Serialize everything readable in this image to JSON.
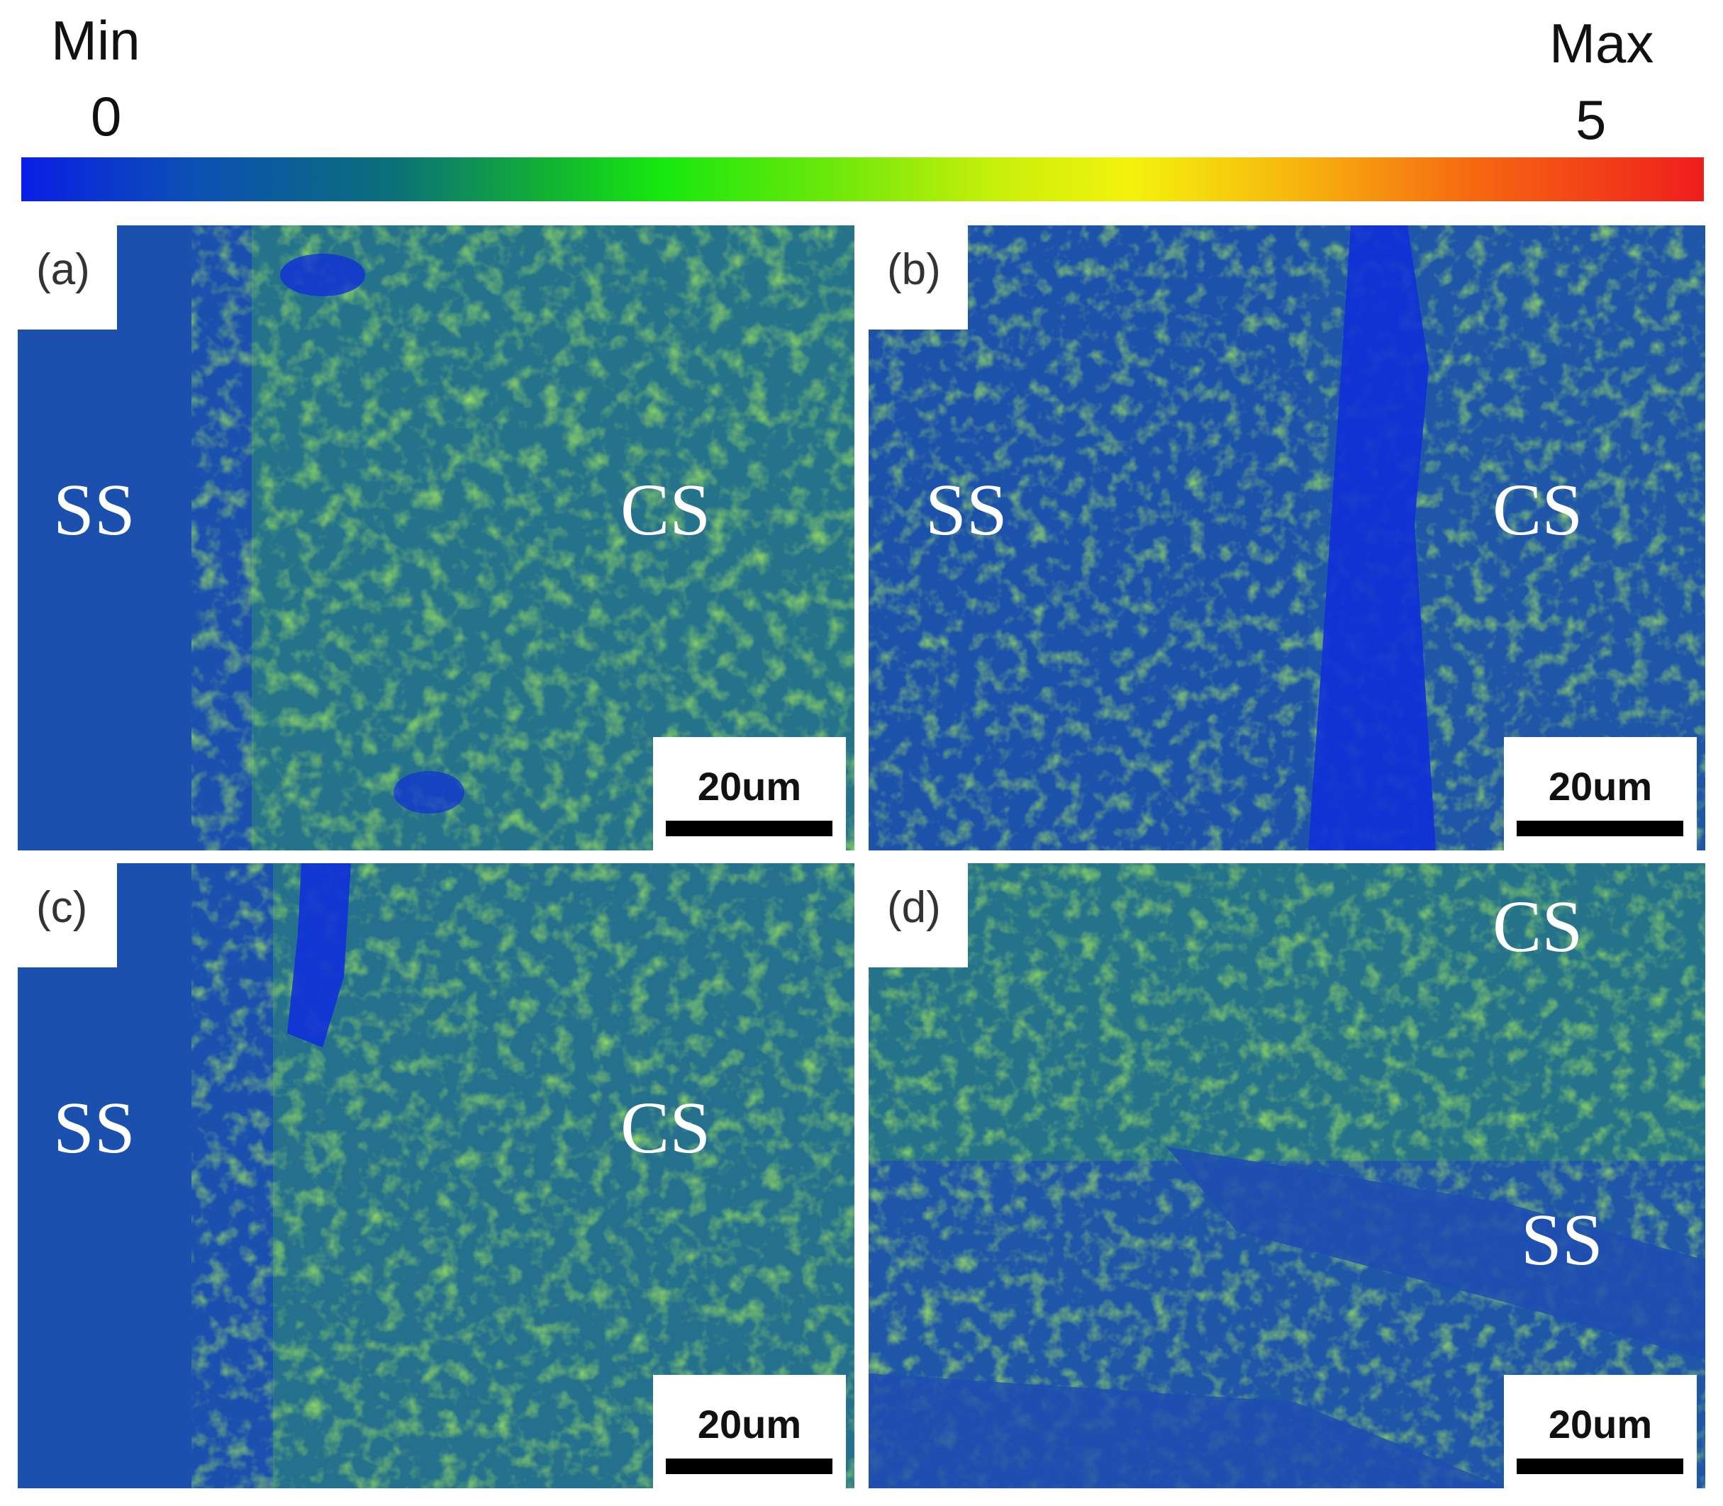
{
  "colorbar": {
    "min_label": "Min",
    "max_label": "Max",
    "min_value": "0",
    "max_value": "5",
    "colors": [
      "#0a1ee6",
      "#0b6f7a",
      "#16e80e",
      "#f4f20c",
      "#ef1d1d"
    ]
  },
  "panels": [
    {
      "tag": "(a)",
      "regions": [
        "SS",
        "CS"
      ],
      "scale": "20um"
    },
    {
      "tag": "(b)",
      "regions": [
        "SS",
        "CS"
      ],
      "scale": "20um"
    },
    {
      "tag": "(c)",
      "regions": [
        "SS",
        "CS"
      ],
      "scale": "20um"
    },
    {
      "tag": "(d)",
      "regions": [
        "CS",
        "SS"
      ],
      "scale": "20um"
    }
  ],
  "colors": {
    "matrix": "#1f56a8",
    "low": "#1030d8",
    "high": "#6fe01a",
    "mid": "#22a060"
  }
}
